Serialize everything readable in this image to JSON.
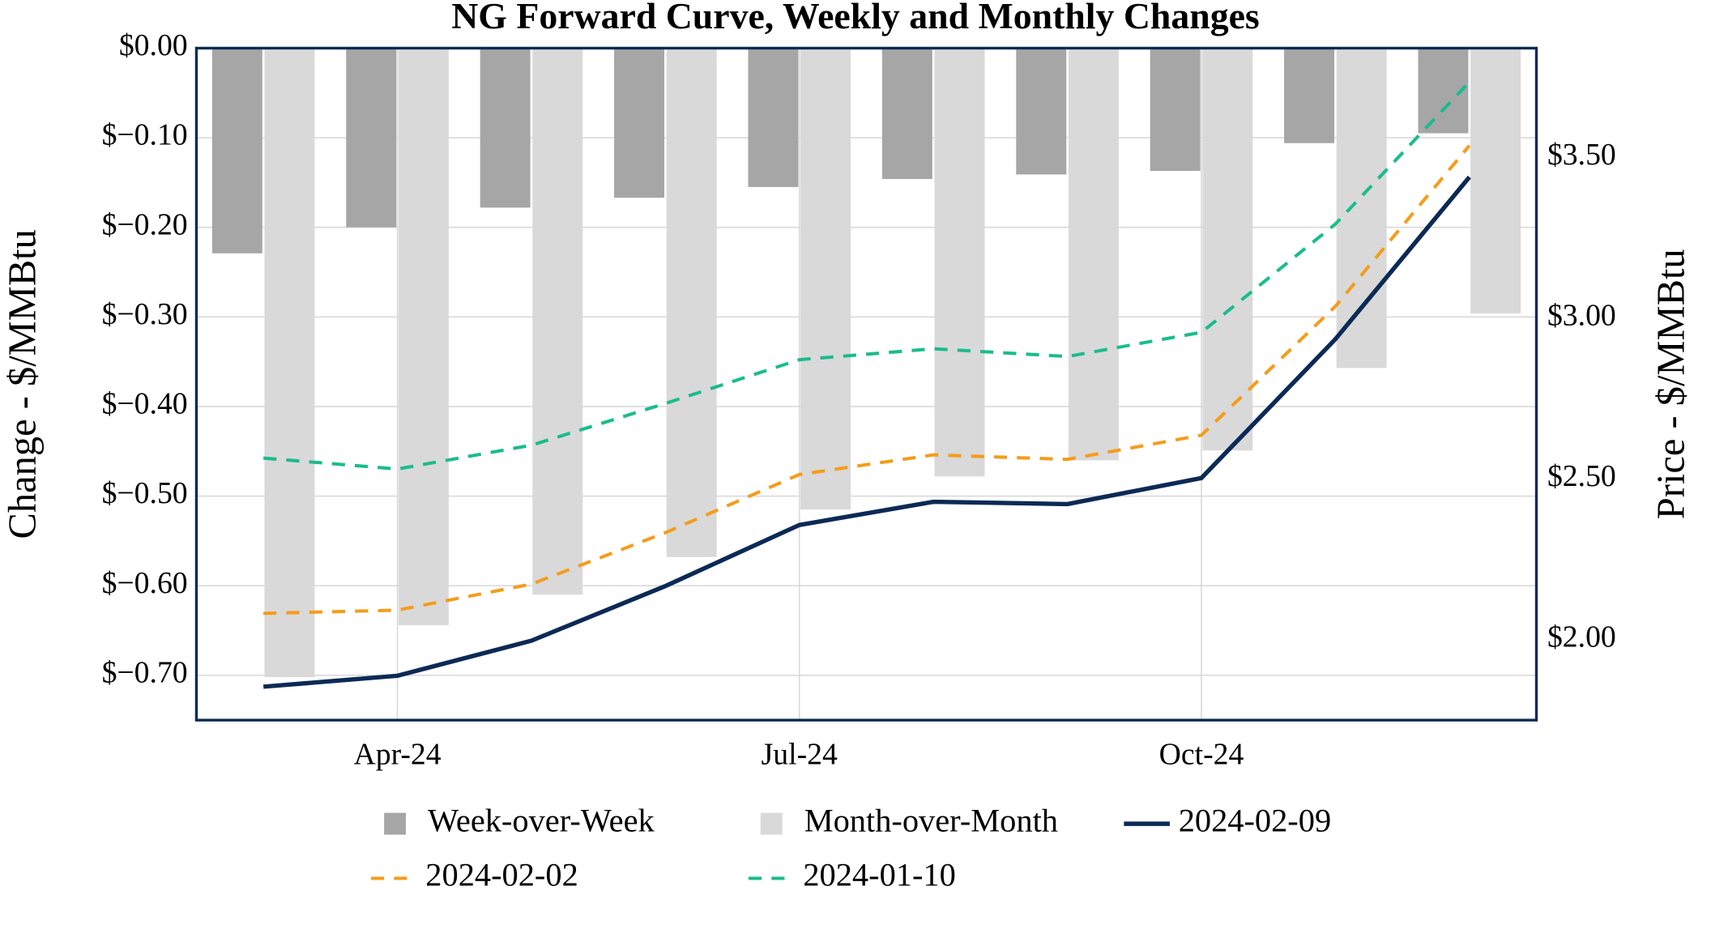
{
  "chart_data": {
    "type": "bar-line",
    "title": "NG Forward Curve, Weekly and Monthly Changes",
    "ylabel": "Change - $/MMBtu",
    "y2label": "Price - $/MMBtu",
    "categories": [
      null,
      "Apr-24",
      null,
      null,
      "Jul-24",
      null,
      null,
      "Oct-24",
      null,
      null
    ],
    "ylim": [
      -0.75,
      0
    ],
    "yticks": [
      {
        "value": 0,
        "label": "$0.00"
      },
      {
        "value": -0.1,
        "label": "$−0.10"
      },
      {
        "value": -0.2,
        "label": "$−0.20"
      },
      {
        "value": -0.3,
        "label": "$−0.30"
      },
      {
        "value": -0.4,
        "label": "$−0.40"
      },
      {
        "value": -0.5,
        "label": "$−0.50"
      },
      {
        "value": -0.6,
        "label": "$−0.60"
      },
      {
        "value": -0.7,
        "label": "$−0.70"
      }
    ],
    "y2lim": [
      1.75,
      3.84
    ],
    "y2ticks": [
      {
        "value": 2,
        "label": "$2.00"
      },
      {
        "value": 2.5,
        "label": "$2.50"
      },
      {
        "value": 3,
        "label": "$3.00"
      },
      {
        "value": 3.5,
        "label": "$3.50"
      }
    ],
    "grid": true,
    "series": [
      {
        "name": "Week-over-Week",
        "type": "bar",
        "color": "#a6a6a6",
        "values": [
          -0.229,
          -0.2,
          -0.178,
          -0.167,
          -0.155,
          -0.146,
          -0.141,
          -0.137,
          -0.106,
          -0.095
        ]
      },
      {
        "name": "Month-over-Month",
        "type": "bar",
        "color": "#d9d9d9",
        "values": [
          -0.702,
          -0.644,
          -0.61,
          -0.568,
          -0.515,
          -0.478,
          -0.46,
          -0.449,
          -0.357,
          -0.296
        ]
      },
      {
        "name": "2024-02-09",
        "type": "line",
        "axis": "y2",
        "linestyle": "solid",
        "color": "#0b2a55",
        "values": [
          1.854,
          1.888,
          1.997,
          2.167,
          2.357,
          2.429,
          2.422,
          2.503,
          2.935,
          3.439
        ]
      },
      {
        "name": "2024-02-02",
        "type": "line",
        "axis": "y2",
        "linestyle": "dashed",
        "color": "#f59c1a",
        "values": [
          2.082,
          2.092,
          2.173,
          2.333,
          2.514,
          2.575,
          2.561,
          2.636,
          3.037,
          3.537
        ]
      },
      {
        "name": "2024-01-10",
        "type": "line",
        "axis": "y2",
        "linestyle": "dashed",
        "color": "#1abc8c",
        "values": [
          2.565,
          2.531,
          2.605,
          2.735,
          2.871,
          2.905,
          2.881,
          2.956,
          3.293,
          3.735
        ]
      }
    ]
  }
}
